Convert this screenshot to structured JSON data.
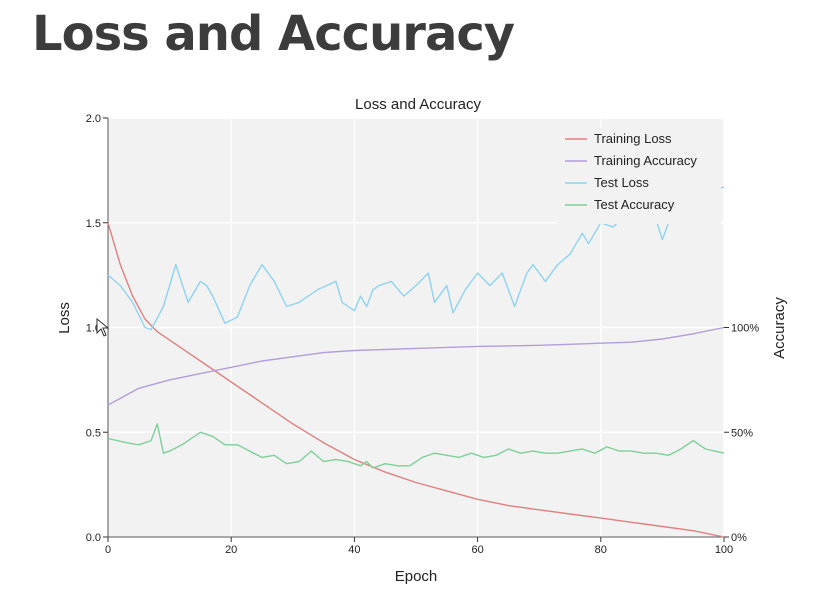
{
  "slide": {
    "title": "Loss and Accuracy"
  },
  "colors": {
    "training_loss": "#e08080",
    "training_accuracy": "#b39ddb",
    "test_loss": "#8fd3f0",
    "test_accuracy": "#7fcf9a",
    "plot_background": "#f2f2f2",
    "grid": "#ffffff"
  },
  "chart_data": {
    "type": "line",
    "title": "Loss and Accuracy",
    "xlabel": "Epoch",
    "ylabel": "Loss",
    "y2label": "Accuracy",
    "xlim": [
      0,
      100
    ],
    "ylim": [
      0,
      2.0
    ],
    "y2lim": [
      0,
      200
    ],
    "x_ticks": [
      "0",
      "20",
      "40",
      "60",
      "80",
      "100"
    ],
    "y_ticks": [
      "0.0",
      "0.5",
      "1.0",
      "1.5",
      "2.0"
    ],
    "y2_ticks": [
      "0%",
      "50%",
      "100%"
    ],
    "y2_tick_values": [
      0,
      50,
      100
    ],
    "grid": true,
    "legend_position": "top-right",
    "series": [
      {
        "name": "Training Loss",
        "axis": "left",
        "x": [
          0,
          2,
          4,
          6,
          8,
          10,
          12,
          15,
          20,
          25,
          30,
          35,
          40,
          45,
          50,
          55,
          60,
          65,
          70,
          75,
          80,
          85,
          90,
          95,
          100
        ],
        "values": [
          1.5,
          1.3,
          1.15,
          1.04,
          0.98,
          0.94,
          0.9,
          0.84,
          0.74,
          0.64,
          0.54,
          0.45,
          0.37,
          0.31,
          0.26,
          0.22,
          0.18,
          0.15,
          0.13,
          0.11,
          0.09,
          0.07,
          0.05,
          0.03,
          0.0
        ]
      },
      {
        "name": "Training Accuracy",
        "axis": "right",
        "x": [
          0,
          5,
          10,
          15,
          20,
          25,
          30,
          35,
          40,
          45,
          50,
          55,
          60,
          65,
          70,
          75,
          80,
          85,
          90,
          95,
          100
        ],
        "values": [
          63,
          71,
          75,
          78,
          81,
          84,
          86,
          88,
          89,
          89.5,
          90,
          90.5,
          91,
          91.2,
          91.5,
          92,
          92.5,
          93,
          94.5,
          97,
          100
        ]
      },
      {
        "name": "Test Loss",
        "axis": "left",
        "x": [
          0,
          2,
          4,
          6,
          7,
          9,
          11,
          13,
          15,
          16,
          17,
          19,
          21,
          23,
          25,
          27,
          29,
          31,
          34,
          37,
          38,
          40,
          41,
          42,
          43,
          44,
          46,
          48,
          50,
          52,
          53,
          55,
          56,
          58,
          60,
          62,
          64,
          65,
          66,
          68,
          69,
          71,
          73,
          75,
          77,
          78,
          80,
          82,
          85,
          88,
          90,
          91,
          93,
          95,
          97,
          100
        ],
        "values": [
          1.25,
          1.2,
          1.12,
          1.0,
          0.99,
          1.1,
          1.3,
          1.12,
          1.22,
          1.2,
          1.15,
          1.02,
          1.05,
          1.2,
          1.3,
          1.22,
          1.1,
          1.12,
          1.18,
          1.22,
          1.12,
          1.08,
          1.15,
          1.1,
          1.18,
          1.2,
          1.22,
          1.15,
          1.2,
          1.26,
          1.12,
          1.2,
          1.07,
          1.18,
          1.26,
          1.2,
          1.26,
          1.18,
          1.1,
          1.26,
          1.3,
          1.22,
          1.3,
          1.35,
          1.45,
          1.4,
          1.5,
          1.48,
          1.56,
          1.6,
          1.42,
          1.5,
          1.58,
          1.62,
          1.65,
          1.67
        ]
      },
      {
        "name": "Test Accuracy",
        "axis": "right",
        "x": [
          0,
          3,
          5,
          7,
          8,
          9,
          10,
          12,
          15,
          17,
          19,
          21,
          23,
          25,
          27,
          29,
          31,
          33,
          35,
          37,
          39,
          41,
          42,
          43,
          45,
          47,
          49,
          51,
          53,
          55,
          57,
          59,
          61,
          63,
          65,
          67,
          69,
          71,
          73,
          75,
          77,
          79,
          81,
          83,
          85,
          87,
          89,
          91,
          93,
          95,
          97,
          100
        ],
        "values": [
          47,
          45,
          44,
          46,
          54,
          40,
          41,
          44,
          50,
          48,
          44,
          44,
          41,
          38,
          39,
          35,
          36,
          41,
          36,
          37,
          36,
          34,
          36,
          33,
          35,
          34,
          34,
          38,
          40,
          39,
          38,
          40,
          38,
          39,
          42,
          40,
          41,
          40,
          40,
          41,
          42,
          40,
          43,
          41,
          41,
          40,
          40,
          39,
          42,
          46,
          42,
          40
        ]
      }
    ]
  }
}
